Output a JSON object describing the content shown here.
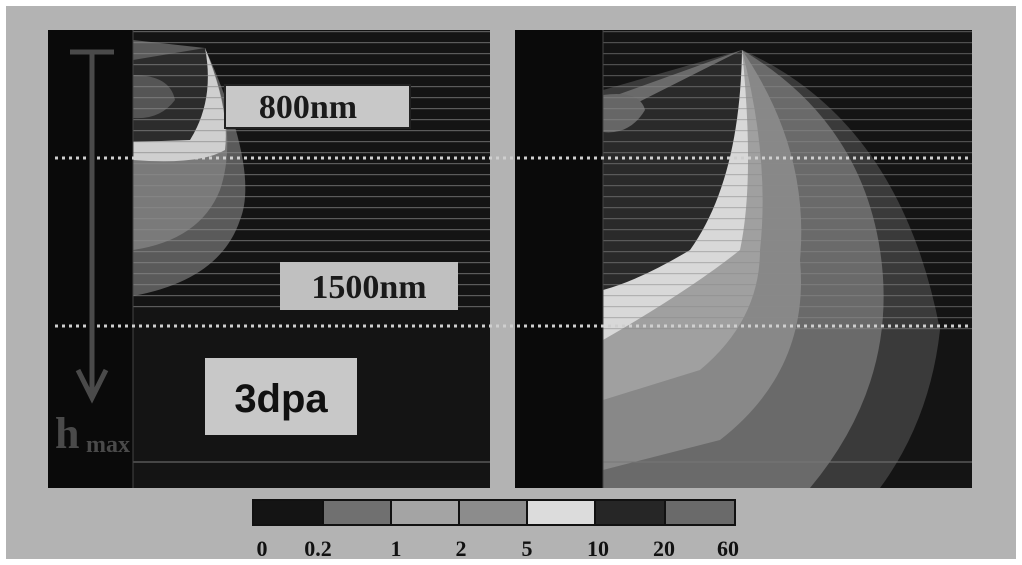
{
  "labels": {
    "depth_1": "800nm",
    "depth_2": "1500nm",
    "dose": "3dpa",
    "axis_symbol": "h",
    "axis_subscript": "max"
  },
  "colorbar": {
    "labels": [
      "0",
      "0.2",
      "1",
      "2",
      "5",
      "10",
      "20",
      "60"
    ]
  }
}
